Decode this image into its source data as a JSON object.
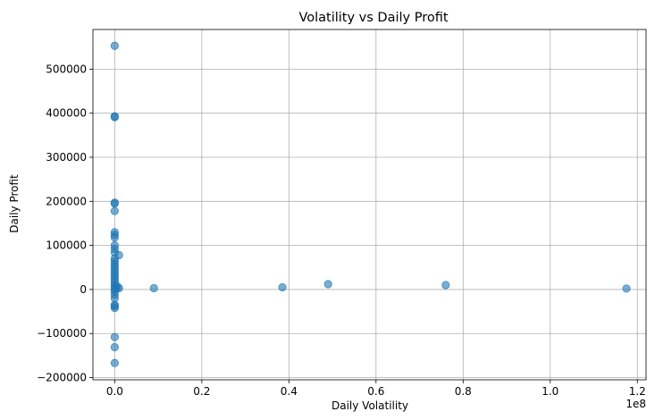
{
  "chart_data": {
    "type": "scatter",
    "title": "Volatility vs Daily Profit",
    "xlabel": "Daily Volatility",
    "ylabel": "Daily Profit",
    "x_offset_label": "1e8",
    "xlim": [
      -0.05,
      1.22
    ],
    "ylim": [
      -205000,
      590000
    ],
    "x_ticks": [
      0.0,
      0.2,
      0.4,
      0.6,
      0.8,
      1.0,
      1.2
    ],
    "x_tick_labels": [
      "0.0",
      "0.2",
      "0.4",
      "0.6",
      "0.8",
      "1.0",
      "1.2"
    ],
    "y_ticks": [
      -200000,
      -100000,
      0,
      100000,
      200000,
      300000,
      400000,
      500000
    ],
    "y_tick_labels": [
      "−200000",
      "−100000",
      "0",
      "100000",
      "200000",
      "300000",
      "400000",
      "500000"
    ],
    "grid": true,
    "marker_color": "#1f77b4",
    "points": [
      {
        "x": 0.0,
        "y": 553000
      },
      {
        "x": 0.0,
        "y": 393000
      },
      {
        "x": 0.0,
        "y": 391000
      },
      {
        "x": 0.0,
        "y": 197000
      },
      {
        "x": 0.0,
        "y": 195000
      },
      {
        "x": 0.0,
        "y": 178000
      },
      {
        "x": 0.0,
        "y": 130000
      },
      {
        "x": 0.0,
        "y": 124000
      },
      {
        "x": 0.0,
        "y": 118000
      },
      {
        "x": 0.0,
        "y": 100000
      },
      {
        "x": 0.0,
        "y": 92000
      },
      {
        "x": 0.0,
        "y": 84000
      },
      {
        "x": 0.0,
        "y": 70000
      },
      {
        "x": 0.0,
        "y": 64000
      },
      {
        "x": 0.0,
        "y": 58000
      },
      {
        "x": 0.0,
        "y": 52000
      },
      {
        "x": 0.0,
        "y": 46000
      },
      {
        "x": 0.0,
        "y": 40000
      },
      {
        "x": 0.0,
        "y": 34000
      },
      {
        "x": 0.0,
        "y": 28000
      },
      {
        "x": 0.0,
        "y": 22000
      },
      {
        "x": 0.0,
        "y": 16000
      },
      {
        "x": 0.0,
        "y": 10000
      },
      {
        "x": 0.0,
        "y": 5000
      },
      {
        "x": 0.0,
        "y": 0
      },
      {
        "x": 0.0,
        "y": -5000
      },
      {
        "x": 0.0,
        "y": -12000
      },
      {
        "x": 0.0,
        "y": -20000
      },
      {
        "x": 0.0,
        "y": -35000
      },
      {
        "x": 0.0,
        "y": -38000
      },
      {
        "x": 0.0,
        "y": -42000
      },
      {
        "x": 0.0,
        "y": -108000
      },
      {
        "x": 0.0,
        "y": -131000
      },
      {
        "x": 0.0,
        "y": -167000
      },
      {
        "x": 0.005,
        "y": 8000
      },
      {
        "x": 0.005,
        "y": 3000
      },
      {
        "x": 0.01,
        "y": 78000
      },
      {
        "x": 0.01,
        "y": 3000
      },
      {
        "x": 0.09,
        "y": 3000
      },
      {
        "x": 0.385,
        "y": 5000
      },
      {
        "x": 0.49,
        "y": 12000
      },
      {
        "x": 0.76,
        "y": 10000
      },
      {
        "x": 1.175,
        "y": 2000
      }
    ]
  }
}
